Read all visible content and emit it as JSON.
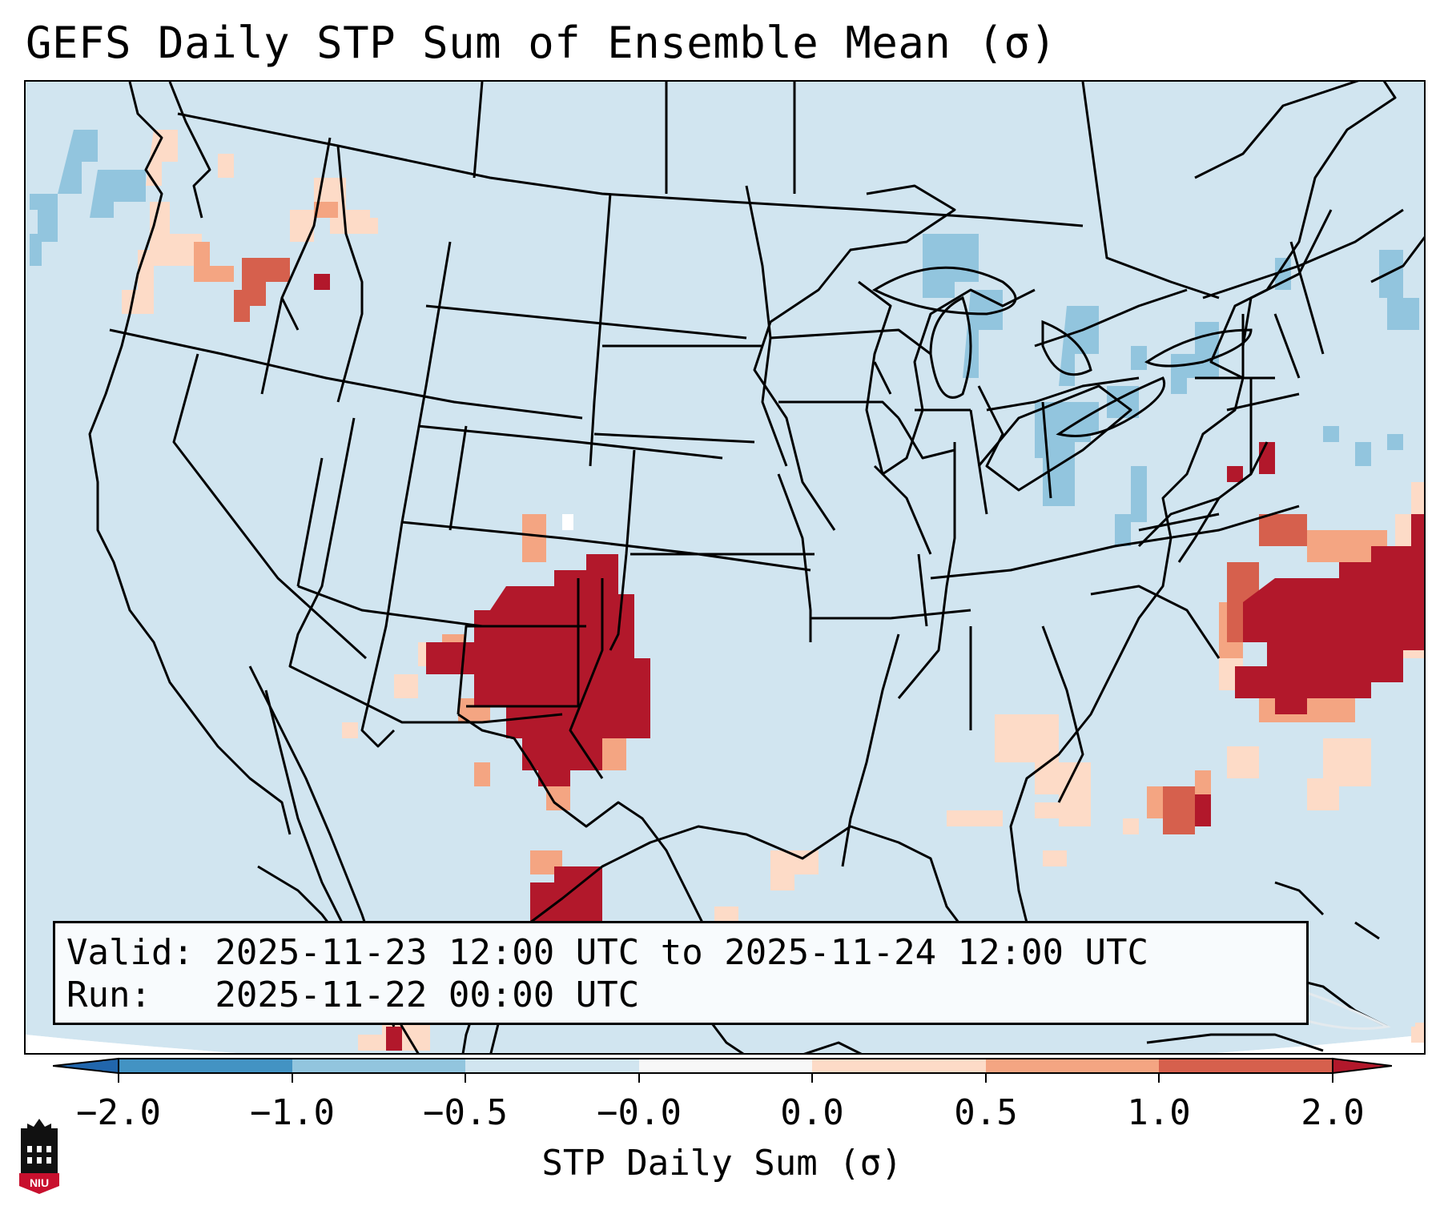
{
  "title": "GEFS Daily STP Sum of Ensemble Mean (σ)",
  "info": {
    "valid_line": "Valid: 2025-11-23 12:00 UTC to 2025-11-24 12:00 UTC",
    "run_line": "Run:   2025-11-22 00:00 UTC"
  },
  "colorbar": {
    "label": "STP Daily Sum (σ)",
    "ticks": [
      "−2.0",
      "−1.0",
      "−0.5",
      "−0.0",
      "0.0",
      "0.5",
      "1.0",
      "2.0"
    ],
    "colors": [
      "#4393c3",
      "#92c5de",
      "#d1e5f0",
      "#f7f7f7",
      "#fddbc7",
      "#f4a582",
      "#d6604d",
      "#b2182b"
    ],
    "extend_low_color": "#2166ac",
    "extend_high_color": "#b2182b"
  },
  "map": {
    "background_color": "#d1e5f0",
    "outside_domain_color": "#ffffff",
    "region": "Continental United States"
  },
  "logo": {
    "text": "NIU"
  }
}
